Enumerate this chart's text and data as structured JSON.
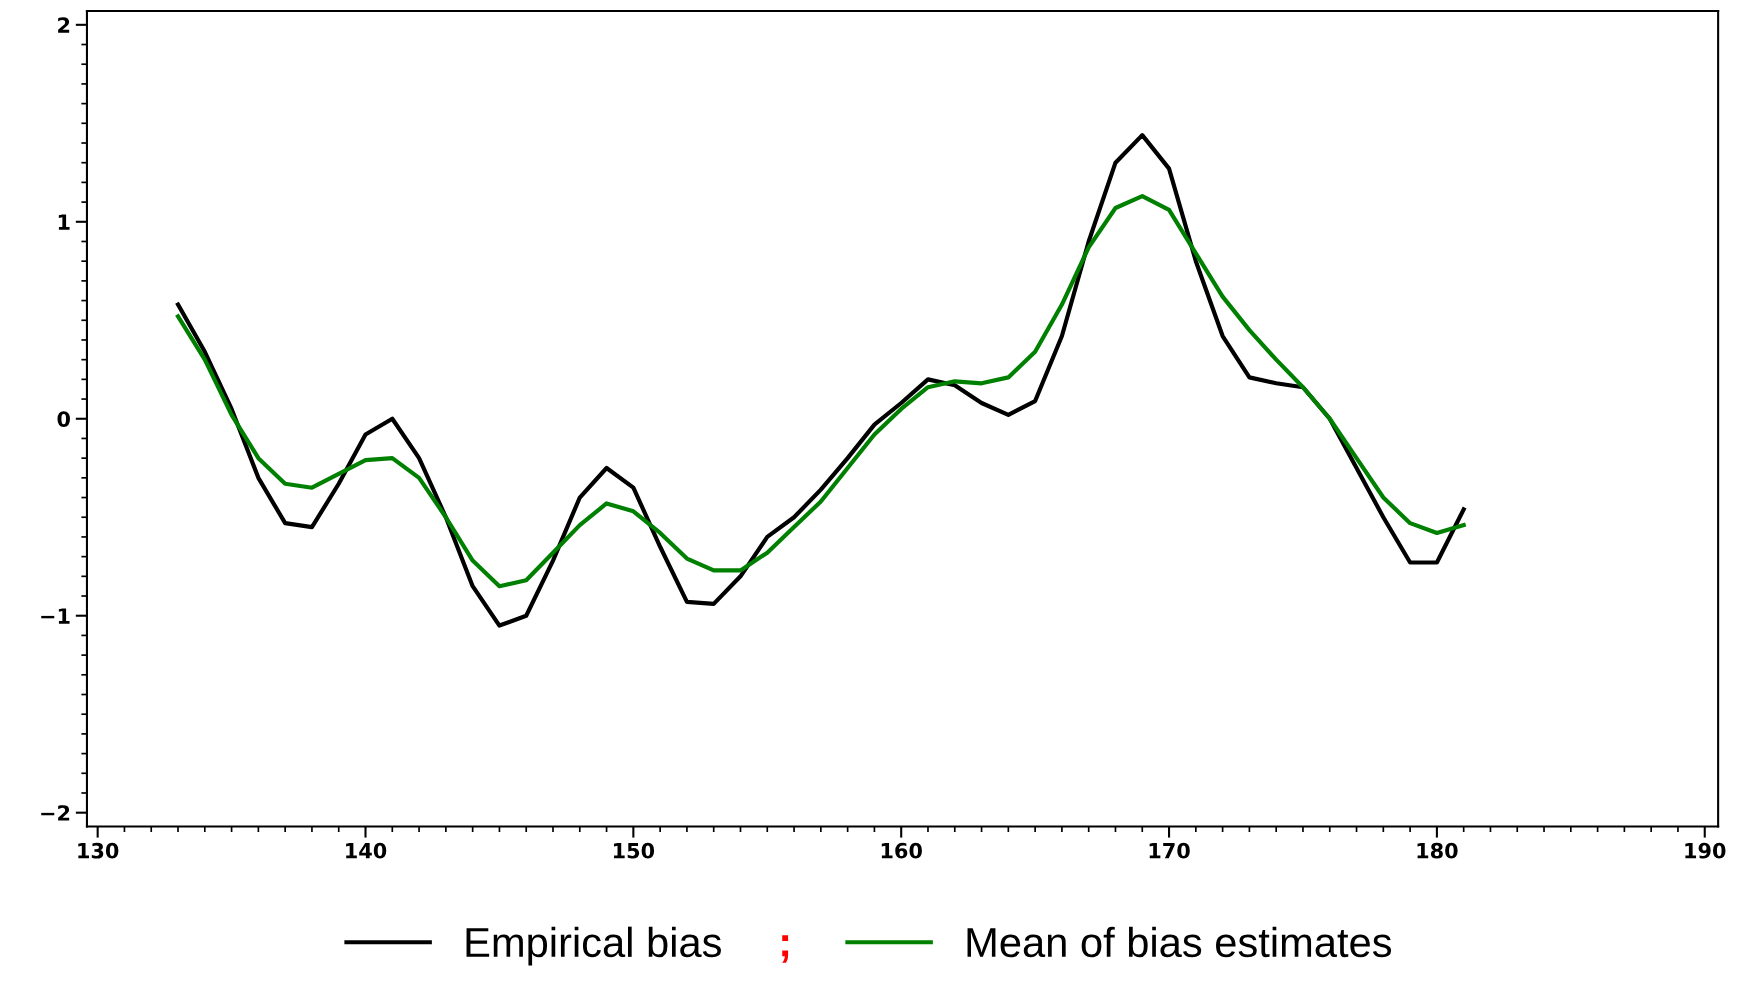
{
  "chart_data": {
    "type": "line",
    "x": [
      133,
      134,
      135,
      136,
      137,
      138,
      139,
      140,
      141,
      142,
      143,
      144,
      145,
      146,
      147,
      148,
      149,
      150,
      151,
      152,
      153,
      154,
      155,
      156,
      157,
      158,
      159,
      160,
      161,
      162,
      163,
      164,
      165,
      166,
      167,
      168,
      169,
      170,
      171,
      172,
      173,
      174,
      175,
      176,
      177,
      178,
      179,
      180,
      181
    ],
    "series": [
      {
        "name": "Empirical bias",
        "color": "#000000",
        "values": [
          0.58,
          0.34,
          0.05,
          -0.3,
          -0.53,
          -0.55,
          -0.33,
          -0.08,
          0.0,
          -0.2,
          -0.5,
          -0.85,
          -1.05,
          -1.0,
          -0.72,
          -0.4,
          -0.25,
          -0.35,
          -0.65,
          -0.93,
          -0.94,
          -0.8,
          -0.6,
          -0.5,
          -0.36,
          -0.2,
          -0.03,
          0.08,
          0.2,
          0.17,
          0.08,
          0.02,
          0.09,
          0.42,
          0.9,
          1.3,
          1.44,
          1.27,
          0.8,
          0.42,
          0.21,
          0.18,
          0.16,
          0.0,
          -0.25,
          -0.5,
          -0.73,
          -0.73,
          -0.46
        ]
      },
      {
        "name": "Mean of bias estimates",
        "color": "#008000",
        "values": [
          0.52,
          0.3,
          0.02,
          -0.2,
          -0.33,
          -0.35,
          -0.28,
          -0.21,
          -0.2,
          -0.3,
          -0.5,
          -0.72,
          -0.85,
          -0.82,
          -0.68,
          -0.54,
          -0.43,
          -0.47,
          -0.58,
          -0.71,
          -0.77,
          -0.77,
          -0.68,
          -0.55,
          -0.42,
          -0.25,
          -0.08,
          0.05,
          0.16,
          0.19,
          0.18,
          0.21,
          0.34,
          0.58,
          0.87,
          1.07,
          1.13,
          1.06,
          0.84,
          0.62,
          0.45,
          0.3,
          0.16,
          0.0,
          -0.2,
          -0.4,
          -0.53,
          -0.58,
          -0.54
        ]
      }
    ],
    "xlim": [
      129.6,
      190.5
    ],
    "xticks": [
      130,
      140,
      150,
      160,
      170,
      180,
      190
    ],
    "ylim": [
      -2.07,
      2.07
    ],
    "yticks": [
      -2,
      -1,
      0,
      1,
      2
    ],
    "annotations": [
      ";"
    ],
    "legend": "bottom",
    "grid": false,
    "marker": "none",
    "line_style": "solid"
  }
}
